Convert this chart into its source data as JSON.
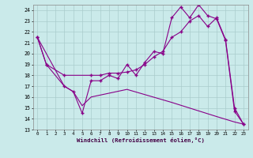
{
  "xlabel": "Windchill (Refroidissement éolien,°C)",
  "bg_color": "#caeaea",
  "grid_color": "#aacccc",
  "line_color": "#880088",
  "xlim": [
    -0.5,
    23.5
  ],
  "ylim": [
    13,
    24.5
  ],
  "xticks": [
    0,
    1,
    2,
    3,
    4,
    5,
    6,
    7,
    8,
    9,
    10,
    11,
    12,
    13,
    14,
    15,
    16,
    17,
    18,
    19,
    20,
    21,
    22,
    23
  ],
  "yticks": [
    13,
    14,
    15,
    16,
    17,
    18,
    19,
    20,
    21,
    22,
    23,
    24
  ],
  "line1_x": [
    0,
    1,
    3,
    4,
    5,
    6,
    7,
    8,
    9,
    10,
    11,
    12,
    13,
    14,
    15,
    16,
    17,
    18,
    19,
    20,
    21,
    22,
    23
  ],
  "line1_y": [
    21.5,
    19.0,
    17.0,
    16.5,
    14.5,
    17.5,
    17.5,
    18.0,
    17.7,
    19.0,
    18.0,
    19.2,
    20.2,
    20.0,
    23.3,
    24.3,
    23.3,
    24.5,
    23.5,
    23.2,
    21.2,
    14.7,
    13.5
  ],
  "line2_x": [
    0,
    1,
    3,
    6,
    7,
    8,
    9,
    10,
    11,
    12,
    13,
    14,
    15,
    16,
    17,
    18,
    19,
    20,
    21,
    22,
    23
  ],
  "line2_y": [
    21.5,
    19.0,
    18.0,
    18.0,
    18.0,
    18.2,
    18.2,
    18.3,
    18.5,
    19.0,
    19.7,
    20.2,
    21.5,
    22.0,
    23.0,
    23.5,
    22.5,
    23.3,
    21.3,
    15.0,
    13.5
  ],
  "line3_x": [
    0,
    3,
    4,
    5,
    6,
    10,
    15,
    20,
    22,
    23
  ],
  "line3_y": [
    21.5,
    17.0,
    16.5,
    15.2,
    16.0,
    16.7,
    15.5,
    14.2,
    13.7,
    13.5
  ]
}
